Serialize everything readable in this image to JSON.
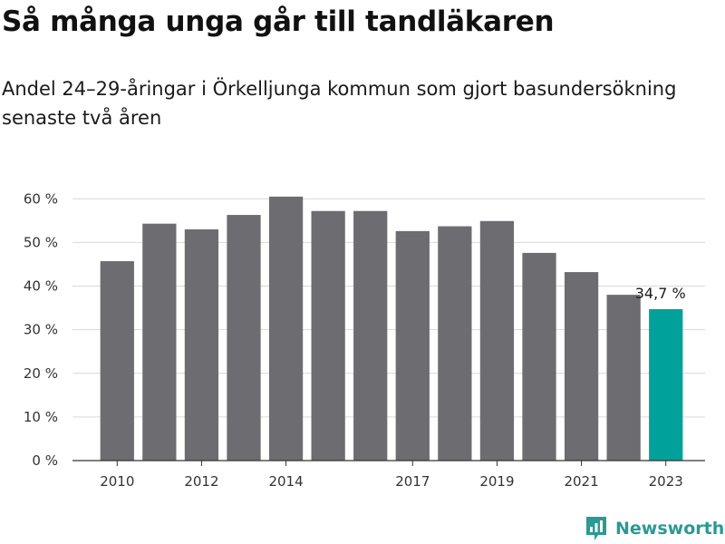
{
  "title": "Så många unga går till tandläkaren",
  "subtitle": "Andel 24–29-åringar i Örkelljunga kommun som gjort basundersökning senaste två åren",
  "brand": {
    "name": "Newsworthy",
    "icon": "newsworthy-logo-icon",
    "color": "#2a9a93"
  },
  "chart_data": {
    "type": "bar",
    "x": [
      2010,
      2011,
      2012,
      2013,
      2014,
      2015,
      2016,
      2017,
      2018,
      2019,
      2020,
      2021,
      2022,
      2023
    ],
    "values": [
      45.7,
      54.3,
      53.0,
      56.3,
      60.5,
      57.2,
      57.2,
      52.6,
      53.7,
      54.9,
      47.6,
      43.2,
      38.0,
      34.7
    ],
    "x_tick_labels": [
      "2010",
      "2012",
      "2014",
      "2017",
      "2019",
      "2021",
      "2023"
    ],
    "y_ticks": [
      0,
      10,
      20,
      30,
      40,
      50,
      60
    ],
    "y_tick_labels": [
      "0 %",
      "10 %",
      "20 %",
      "30 %",
      "40 %",
      "50 %",
      "60 %"
    ],
    "ylim": [
      0,
      60
    ],
    "highlight_label": "34,7 %",
    "colors": {
      "default": "#6d6c70",
      "highlight": "#00a19a",
      "grid": "#d9d9d9"
    },
    "grid": true,
    "xlabel": "",
    "ylabel": ""
  }
}
